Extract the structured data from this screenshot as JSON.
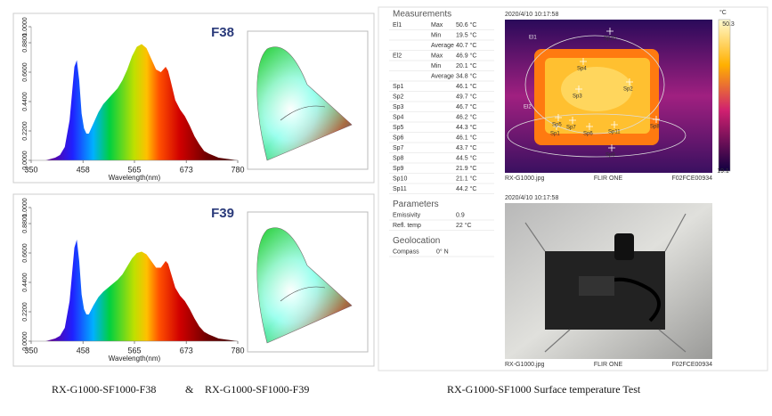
{
  "chart_data": [
    {
      "type": "area",
      "title": "F38",
      "xlabel": "Wavelength(nm)",
      "x": [
        350,
        380,
        400,
        410,
        420,
        430,
        435,
        440,
        445,
        450,
        455,
        460,
        465,
        470,
        480,
        490,
        500,
        510,
        520,
        530,
        540,
        550,
        560,
        570,
        580,
        590,
        600,
        610,
        620,
        630,
        635,
        640,
        650,
        660,
        670,
        680,
        690,
        700,
        710,
        720,
        740,
        760,
        780
      ],
      "values": [
        0,
        0,
        0.02,
        0.04,
        0.1,
        0.3,
        0.5,
        0.7,
        0.75,
        0.6,
        0.35,
        0.24,
        0.2,
        0.2,
        0.28,
        0.36,
        0.42,
        0.46,
        0.5,
        0.54,
        0.6,
        0.68,
        0.78,
        0.85,
        0.87,
        0.84,
        0.76,
        0.68,
        0.66,
        0.7,
        0.67,
        0.6,
        0.45,
        0.38,
        0.33,
        0.26,
        0.18,
        0.12,
        0.07,
        0.05,
        0.02,
        0.01,
        0
      ],
      "xlim": [
        350,
        780
      ],
      "xticks": [
        350,
        458,
        565,
        673,
        780
      ],
      "ylim": [
        0,
        1
      ],
      "yticks": [
        {
          "value": 0,
          "label": "0.0000"
        },
        {
          "value": 0.22,
          "label": "0.2200"
        },
        {
          "value": 0.44,
          "label": "0.4400"
        },
        {
          "value": 0.66,
          "label": "0.6600"
        },
        {
          "value": 0.88,
          "label": "0.8800"
        },
        {
          "value": 1,
          "label": "1.0000"
        }
      ]
    },
    {
      "type": "area",
      "title": "F39",
      "xlabel": "Wavelength(nm)",
      "x": [
        350,
        380,
        400,
        410,
        420,
        430,
        435,
        440,
        445,
        450,
        455,
        460,
        465,
        470,
        480,
        490,
        500,
        510,
        520,
        530,
        540,
        550,
        560,
        570,
        580,
        590,
        600,
        610,
        620,
        630,
        635,
        640,
        650,
        660,
        670,
        680,
        690,
        700,
        710,
        720,
        740,
        760,
        780
      ],
      "values": [
        0,
        0,
        0.02,
        0.04,
        0.1,
        0.3,
        0.5,
        0.7,
        0.76,
        0.6,
        0.35,
        0.24,
        0.2,
        0.2,
        0.27,
        0.33,
        0.37,
        0.4,
        0.43,
        0.46,
        0.5,
        0.56,
        0.62,
        0.66,
        0.67,
        0.65,
        0.6,
        0.55,
        0.55,
        0.6,
        0.58,
        0.52,
        0.4,
        0.34,
        0.3,
        0.24,
        0.17,
        0.11,
        0.07,
        0.05,
        0.02,
        0.01,
        0
      ],
      "xlim": [
        350,
        780
      ],
      "xticks": [
        350,
        458,
        565,
        673,
        780
      ],
      "ylim": [
        0,
        1
      ],
      "yticks": [
        {
          "value": 0,
          "label": "0.0000"
        },
        {
          "value": 0.22,
          "label": "0.2200"
        },
        {
          "value": 0.44,
          "label": "0.4400"
        },
        {
          "value": 0.66,
          "label": "0.6600"
        },
        {
          "value": 0.88,
          "label": "0.8800"
        },
        {
          "value": 1,
          "label": "1.0000"
        }
      ]
    }
  ],
  "captions": {
    "left_a": "RX-G1000-SF1000-F38",
    "amp": "&",
    "left_b": "RX-G1000-SF1000-F39",
    "right": "RX-G1000-SF1000 Surface temperature Test"
  },
  "report": {
    "measurements": {
      "title": "Measurements",
      "rows": [
        {
          "name": "El1",
          "stat": "Max",
          "value": "50.6 °C"
        },
        {
          "stat": "Min",
          "value": "19.5 °C"
        },
        {
          "stat": "Average",
          "value": "40.7 °C"
        },
        {
          "name": "El2",
          "stat": "Max",
          "value": "46.9 °C"
        },
        {
          "stat": "Min",
          "value": "20.1 °C"
        },
        {
          "stat": "Average",
          "value": "34.8 °C"
        },
        {
          "name": "Sp1",
          "value": "46.1 °C"
        },
        {
          "name": "Sp2",
          "value": "49.7 °C"
        },
        {
          "name": "Sp3",
          "value": "46.7 °C"
        },
        {
          "name": "Sp4",
          "value": "46.2 °C"
        },
        {
          "name": "Sp5",
          "value": "44.3 °C"
        },
        {
          "name": "Sp6",
          "value": "46.1 °C"
        },
        {
          "name": "Sp7",
          "value": "43.7 °C"
        },
        {
          "name": "Sp8",
          "value": "44.5 °C"
        },
        {
          "name": "Sp9",
          "value": "21.9 °C"
        },
        {
          "name": "Sp10",
          "value": "21.1 °C"
        },
        {
          "name": "Sp11",
          "value": "44.2 °C"
        }
      ]
    },
    "parameters": {
      "title": "Parameters",
      "rows": [
        {
          "name": "Emissivity",
          "value": "0.9"
        },
        {
          "name": "Refl. temp",
          "value": "22 °C"
        }
      ]
    },
    "geolocation": {
      "title": "Geolocation",
      "rows": [
        {
          "name": "Compass",
          "value": "0° N"
        }
      ]
    }
  },
  "thermal_image": {
    "timestamp": "2020/4/10 10:17:58",
    "unit": "°C",
    "scale_max": "50.3",
    "scale_min": "19.1",
    "file": "RX-G1000.jpg",
    "camera": "FLIR ONE",
    "serial": "F02FCE00934"
  },
  "photo": {
    "timestamp": "2020/4/10 10:17:58",
    "file": "RX-G1000.jpg",
    "camera": "FLIR ONE",
    "serial": "F02FCE00934"
  }
}
